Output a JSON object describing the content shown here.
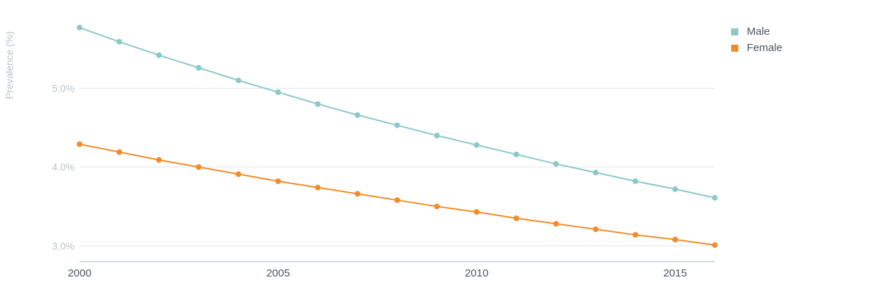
{
  "chart_data": {
    "type": "line",
    "title": "",
    "xlabel": "",
    "ylabel": "Prevalence (%)",
    "x": [
      2000,
      2001,
      2002,
      2003,
      2004,
      2005,
      2006,
      2007,
      2008,
      2009,
      2010,
      2011,
      2012,
      2013,
      2014,
      2015,
      2016
    ],
    "xlim": [
      2000,
      2016
    ],
    "x_ticks": [
      2000,
      2005,
      2010,
      2015
    ],
    "x_tick_labels": [
      "2000",
      "2005",
      "2010",
      "2015"
    ],
    "ylim": [
      2.8,
      5.85
    ],
    "y_ticks": [
      3.0,
      4.0,
      5.0
    ],
    "y_tick_labels": [
      "3.0%",
      "4.0%",
      "5.0%"
    ],
    "grid": true,
    "legend_position": "top-right",
    "series": [
      {
        "name": "Male",
        "color": "#8dc8c8",
        "values": [
          5.77,
          5.59,
          5.42,
          5.26,
          5.1,
          4.95,
          4.8,
          4.66,
          4.53,
          4.4,
          4.28,
          4.16,
          4.04,
          3.93,
          3.82,
          3.72,
          3.61
        ]
      },
      {
        "name": "Female",
        "color": "#f28c2a",
        "values": [
          4.29,
          4.19,
          4.09,
          4.0,
          3.91,
          3.82,
          3.74,
          3.66,
          3.58,
          3.5,
          3.43,
          3.35,
          3.28,
          3.21,
          3.14,
          3.08,
          3.01
        ]
      }
    ]
  }
}
